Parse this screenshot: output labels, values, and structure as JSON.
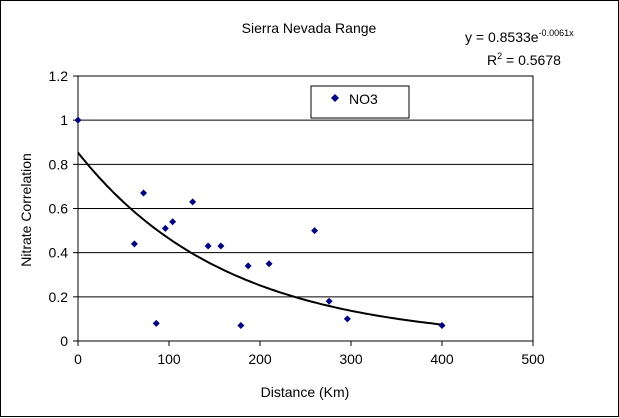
{
  "chart_data": {
    "type": "scatter",
    "title": "Sierra Nevada Range",
    "xlabel": "Distance (Km)",
    "ylabel": "Nitrate Correlation",
    "xlim": [
      0,
      500
    ],
    "ylim": [
      0,
      1.2
    ],
    "xticks": [
      "0",
      "100",
      "200",
      "300",
      "400",
      "500"
    ],
    "yticks": [
      "0",
      "0.2",
      "0.4",
      "0.6",
      "0.8",
      "1",
      "1.2"
    ],
    "grid": "horizontal",
    "legend": {
      "position": "top-right",
      "entries": [
        "NO3"
      ]
    },
    "series": [
      {
        "name": "NO3",
        "color": "#000080",
        "marker": "diamond",
        "points": [
          [
            0,
            1.0
          ],
          [
            62,
            0.44
          ],
          [
            72,
            0.67
          ],
          [
            86,
            0.08
          ],
          [
            96,
            0.51
          ],
          [
            104,
            0.54
          ],
          [
            126,
            0.63
          ],
          [
            143,
            0.43
          ],
          [
            157,
            0.43
          ],
          [
            179,
            0.07
          ],
          [
            187,
            0.34
          ],
          [
            210,
            0.35
          ],
          [
            260,
            0.5
          ],
          [
            276,
            0.18
          ],
          [
            296,
            0.1
          ],
          [
            400,
            0.07
          ]
        ]
      }
    ],
    "trendline": {
      "type": "exponential",
      "a": 0.8533,
      "b": -0.0061,
      "equation_prefix": "y = 0.8533e",
      "equation_exponent": "-0.0061x",
      "r2_prefix": "R",
      "r2_sup": "2",
      "r2_suffix": " = 0.5678"
    }
  }
}
